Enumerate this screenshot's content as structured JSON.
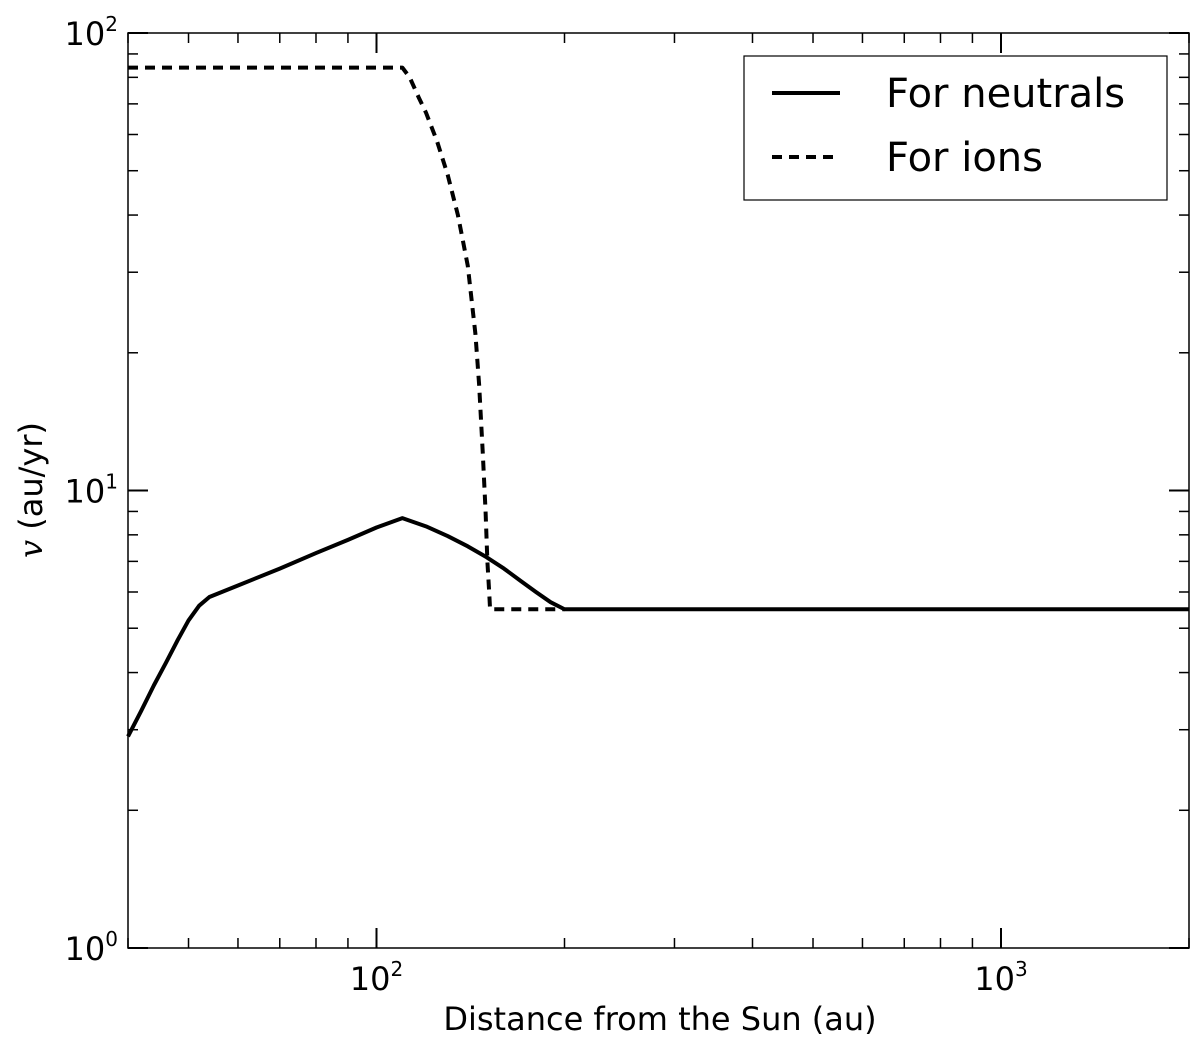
{
  "chart_data": {
    "type": "line",
    "title": "",
    "xlabel": "Distance from the Sun (au)",
    "ylabel_var": "v",
    "ylabel_unit": " (au/yr)",
    "xscale": "log",
    "yscale": "log",
    "xlim": [
      40,
      2000
    ],
    "ylim": [
      1,
      100
    ],
    "x_ticks": [
      {
        "value": 100,
        "base": "10",
        "exp": "2"
      },
      {
        "value": 1000,
        "base": "10",
        "exp": "3"
      }
    ],
    "y_ticks": [
      {
        "value": 1,
        "base": "10",
        "exp": "0"
      },
      {
        "value": 10,
        "base": "10",
        "exp": "1"
      },
      {
        "value": 100,
        "base": "10",
        "exp": "2"
      }
    ],
    "legend_position": "top-right",
    "grid": false,
    "series": [
      {
        "name": "For neutrals",
        "style": "solid",
        "color": "#000000",
        "points": [
          [
            40,
            2.9
          ],
          [
            42,
            3.3
          ],
          [
            44,
            3.75
          ],
          [
            46,
            4.2
          ],
          [
            48,
            4.7
          ],
          [
            50,
            5.2
          ],
          [
            52,
            5.6
          ],
          [
            54,
            5.85
          ],
          [
            60,
            6.2
          ],
          [
            70,
            6.75
          ],
          [
            80,
            7.3
          ],
          [
            90,
            7.8
          ],
          [
            100,
            8.3
          ],
          [
            110,
            8.7
          ],
          [
            120,
            8.35
          ],
          [
            130,
            7.95
          ],
          [
            140,
            7.55
          ],
          [
            150,
            7.15
          ],
          [
            160,
            6.75
          ],
          [
            170,
            6.35
          ],
          [
            180,
            6.0
          ],
          [
            190,
            5.7
          ],
          [
            200,
            5.5
          ],
          [
            500,
            5.5
          ],
          [
            1000,
            5.5
          ],
          [
            2000,
            5.5
          ]
        ]
      },
      {
        "name": "For ions",
        "style": "dashed",
        "color": "#000000",
        "points": [
          [
            40,
            84
          ],
          [
            60,
            84
          ],
          [
            80,
            84
          ],
          [
            110,
            84
          ],
          [
            113,
            80
          ],
          [
            117,
            72
          ],
          [
            120,
            67
          ],
          [
            125,
            58
          ],
          [
            130,
            49
          ],
          [
            135,
            40
          ],
          [
            140,
            31
          ],
          [
            144,
            22
          ],
          [
            146,
            17
          ],
          [
            148,
            12
          ],
          [
            149.5,
            9
          ],
          [
            150.5,
            7
          ],
          [
            151.5,
            6
          ],
          [
            152,
            5.5
          ],
          [
            175,
            5.5
          ],
          [
            200,
            5.5
          ]
        ]
      }
    ]
  }
}
